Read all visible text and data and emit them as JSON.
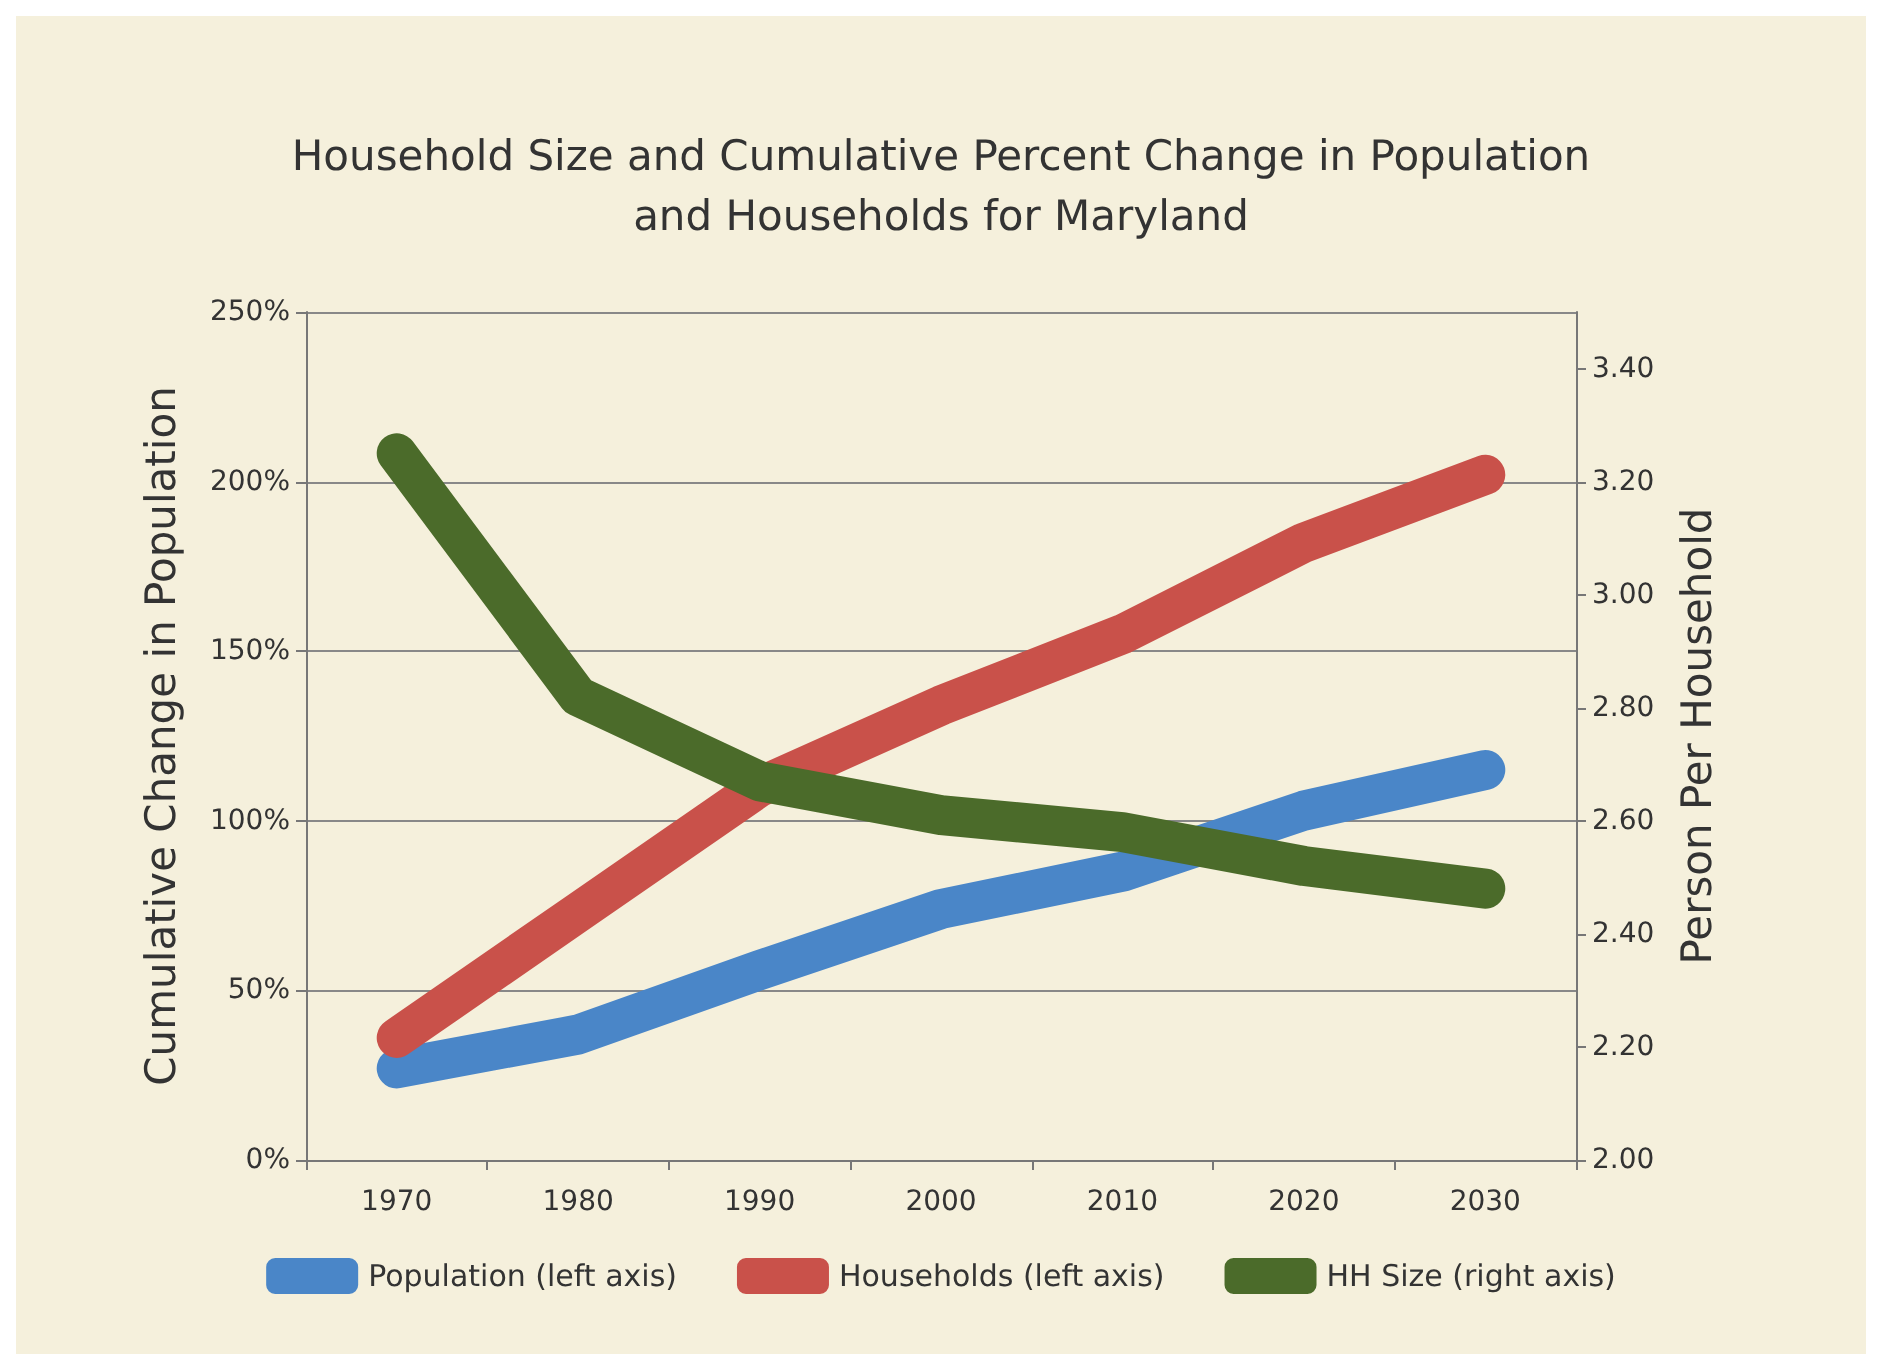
{
  "chart_data": {
    "type": "line",
    "title": "Household Size and Cumulative Percent Change in Population\nand Households for Maryland",
    "ylabel": "Cumulative Change in Population",
    "y2label": "Person Per Household",
    "categories": [
      "1970",
      "1980",
      "1990",
      "2000",
      "2010",
      "2020",
      "2030"
    ],
    "series": [
      {
        "name": "Population (left axis)",
        "color": "#4a86c8",
        "values": [
          27,
          37,
          56,
          74,
          85,
          103,
          115
        ]
      },
      {
        "name": "Households (left axis)",
        "color": "#c9514a",
        "values": [
          36,
          73,
          110,
          134,
          155,
          182,
          202
        ]
      },
      {
        "name": "HH Size (right axis)",
        "color": "#4b6b2a",
        "axis": "y2",
        "values": [
          3.25,
          2.82,
          2.67,
          2.61,
          2.58,
          2.52,
          2.48
        ]
      }
    ],
    "ylim": [
      0,
      250
    ],
    "yticks": [
      {
        "value": 0,
        "label": "0%"
      },
      {
        "value": 50,
        "label": "50%"
      },
      {
        "value": 100,
        "label": "100%"
      },
      {
        "value": 150,
        "label": "150%"
      },
      {
        "value": 200,
        "label": "200%"
      },
      {
        "value": 250,
        "label": "250%"
      }
    ],
    "y2lim": [
      2,
      3.5
    ],
    "y2ticks": [
      {
        "value": 2,
        "label": "2.00"
      },
      {
        "value": 2.2,
        "label": "2.20"
      },
      {
        "value": 2.4,
        "label": "2.40"
      },
      {
        "value": 2.6,
        "label": "2.60"
      },
      {
        "value": 2.8,
        "label": "2.80"
      },
      {
        "value": 3,
        "label": "3.00"
      },
      {
        "value": 3.2,
        "label": "3.20"
      },
      {
        "value": 3.4,
        "label": "3.40"
      }
    ],
    "grid": "y",
    "legend": "bottom",
    "marker": "none",
    "line_style": "solid"
  }
}
